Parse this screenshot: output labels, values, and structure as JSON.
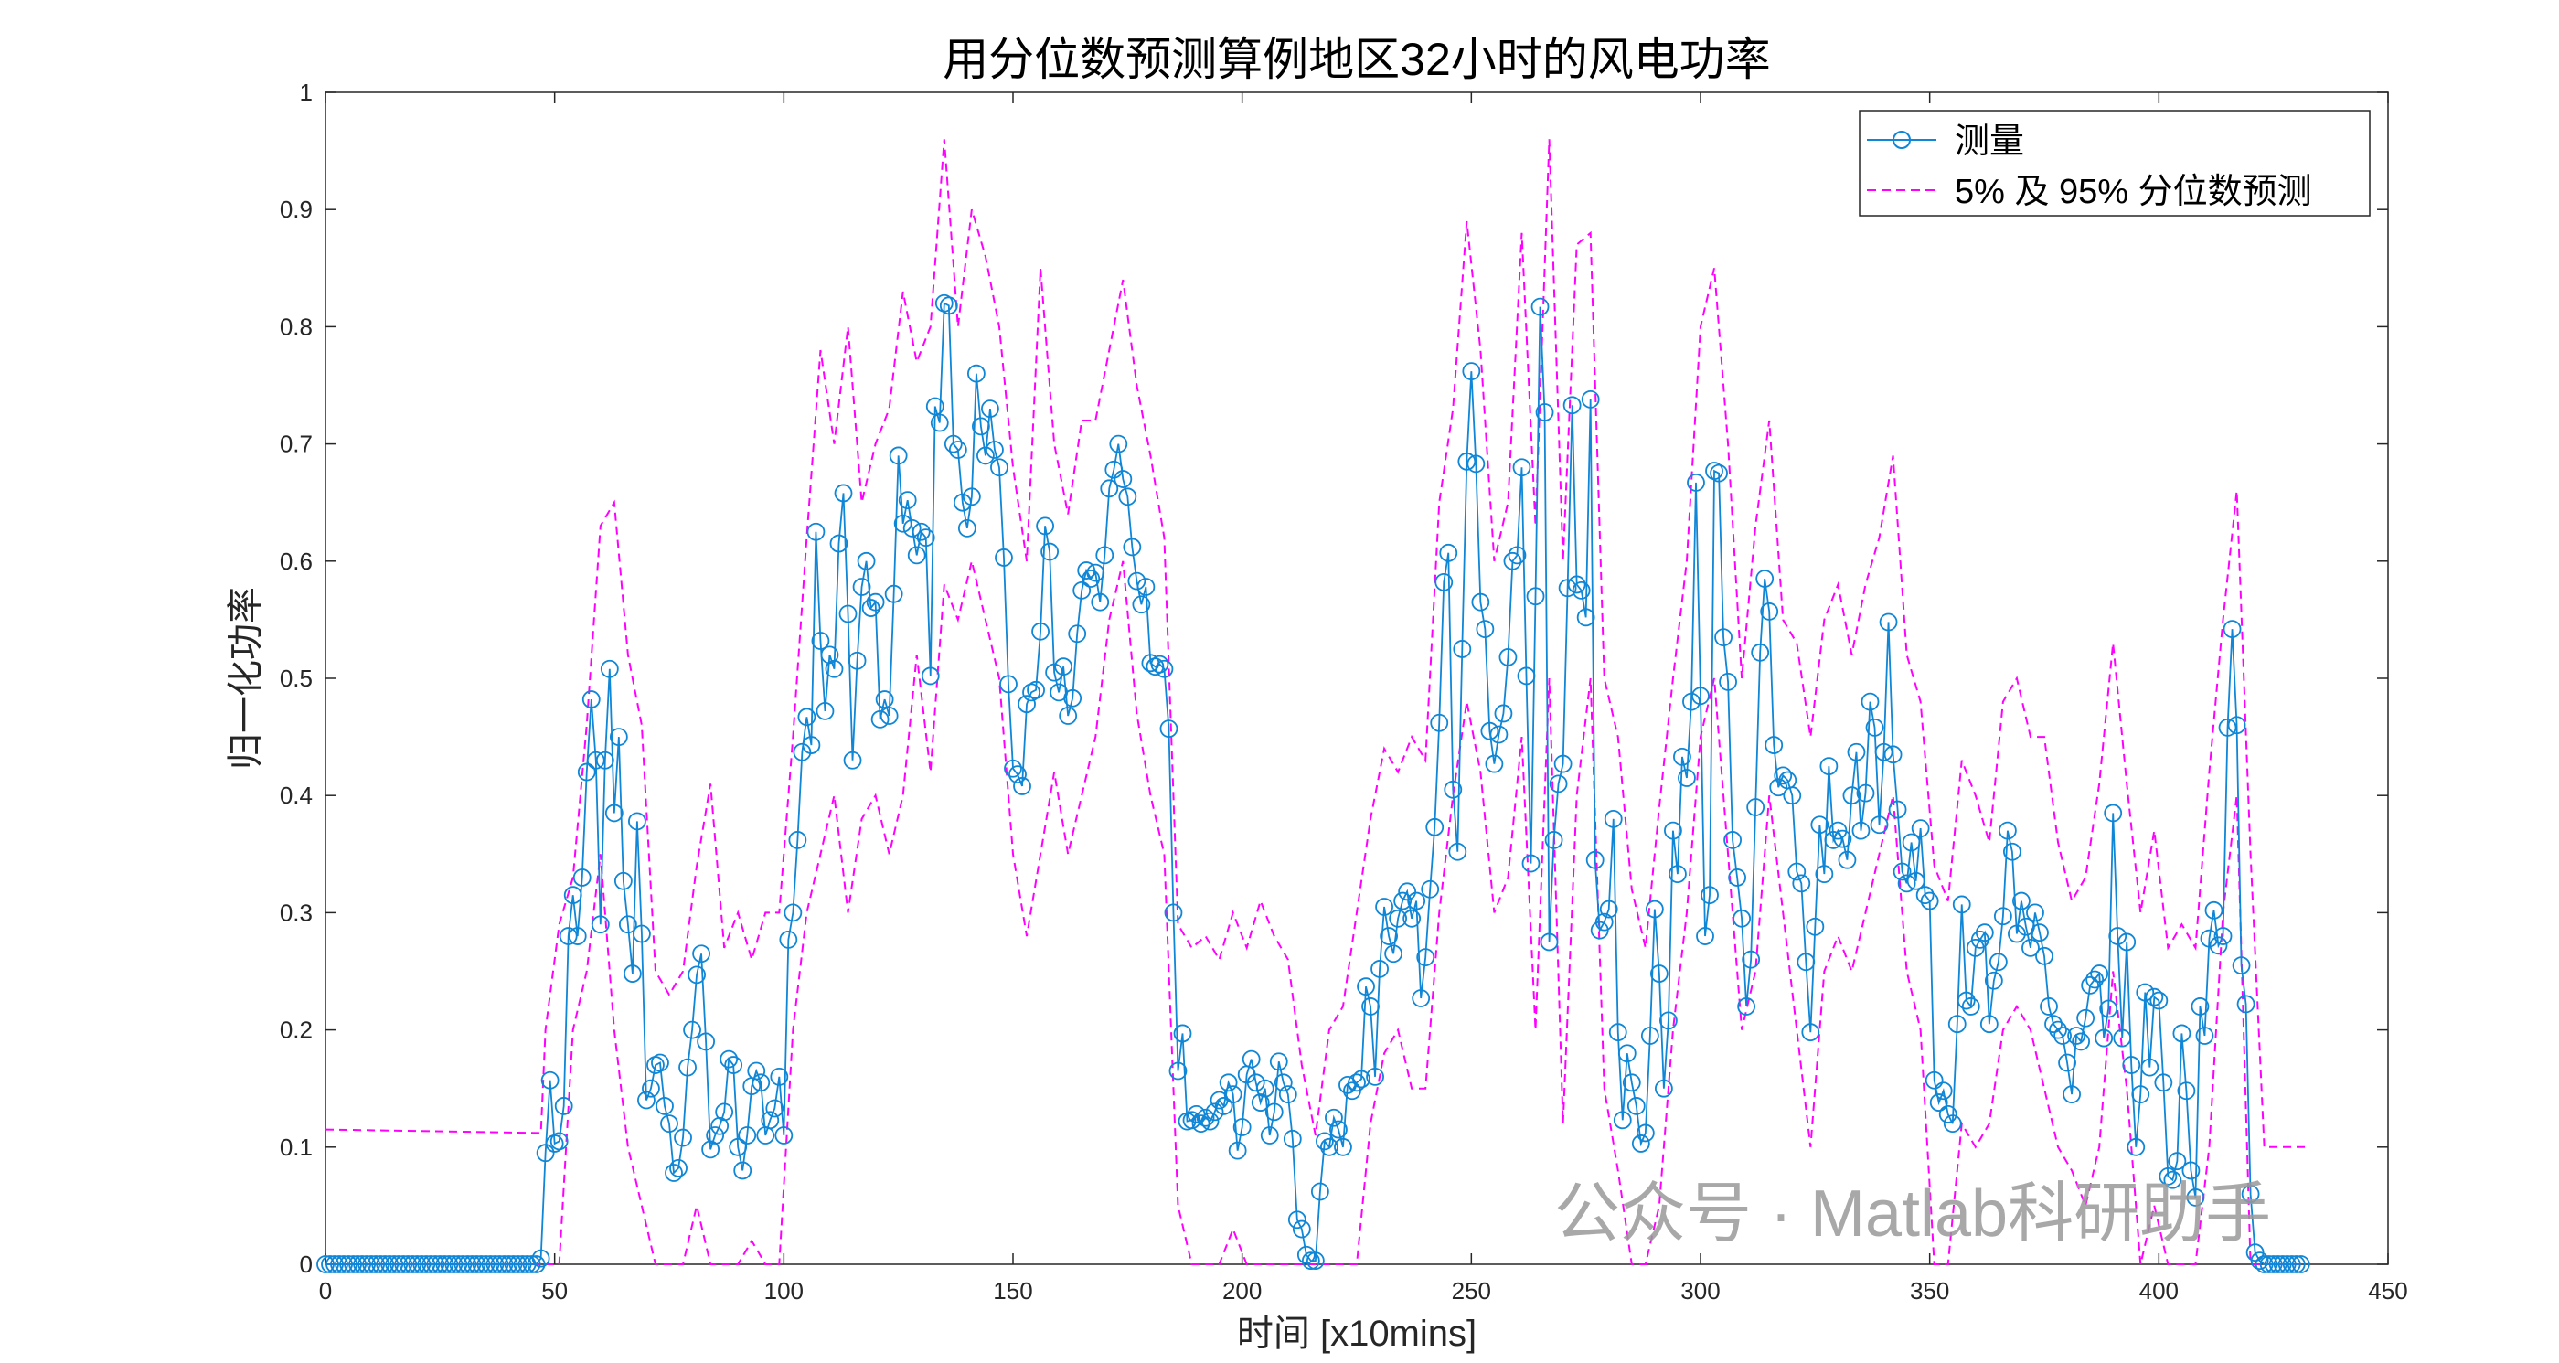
{
  "chart_data": {
    "type": "line",
    "title": "用分位数预测算例地区32小时的风电功率",
    "xlabel": "时间 [x10mins]",
    "ylabel": "归一化功率",
    "xlim": [
      0,
      450
    ],
    "ylim": [
      0,
      1
    ],
    "xticks": [
      "0",
      "50",
      "100",
      "150",
      "200",
      "250",
      "300",
      "350",
      "400",
      "450"
    ],
    "yticks": [
      "0",
      "0.1",
      "0.2",
      "0.3",
      "0.4",
      "0.5",
      "0.6",
      "0.7",
      "0.8",
      "0.9",
      "1"
    ],
    "grid": false,
    "legend_position": "top-right",
    "colors": {
      "measured": "#0F86D6",
      "quantile": "#FF00FF"
    },
    "series": [
      {
        "name": "测量",
        "style": "solid-circle",
        "x_start": 0,
        "step": 1,
        "values": [
          0,
          0,
          0,
          0,
          0,
          0,
          0,
          0,
          0,
          0,
          0,
          0,
          0,
          0,
          0,
          0,
          0,
          0,
          0,
          0,
          0,
          0,
          0,
          0,
          0,
          0,
          0,
          0,
          0,
          0,
          0,
          0,
          0,
          0,
          0,
          0,
          0,
          0,
          0,
          0,
          0,
          0,
          0,
          0,
          0,
          0,
          0,
          0.005,
          0.095,
          0.157,
          0.103,
          0.105,
          0.135,
          0.28,
          0.315,
          0.28,
          0.33,
          0.42,
          0.482,
          0.43,
          0.29,
          0.43,
          0.508,
          0.385,
          0.45,
          0.327,
          0.29,
          0.248,
          0.378,
          0.282,
          0.14,
          0.15,
          0.17,
          0.172,
          0.135,
          0.12,
          0.078,
          0.082,
          0.108,
          0.168,
          0.2,
          0.247,
          0.265,
          0.19,
          0.098,
          0.11,
          0.118,
          0.13,
          0.175,
          0.17,
          0.1,
          0.08,
          0.11,
          0.152,
          0.165,
          0.155,
          0.11,
          0.123,
          0.133,
          0.16,
          0.11,
          0.277,
          0.3,
          0.362,
          0.437,
          0.467,
          0.443,
          0.625,
          0.532,
          0.472,
          0.52,
          0.508,
          0.615,
          0.658,
          0.555,
          0.43,
          0.515,
          0.578,
          0.6,
          0.56,
          0.565,
          0.465,
          0.482,
          0.468,
          0.572,
          0.69,
          0.632,
          0.652,
          0.628,
          0.605,
          0.625,
          0.62,
          0.502,
          0.732,
          0.718,
          0.82,
          0.818,
          0.7,
          0.695,
          0.65,
          0.628,
          0.655,
          0.76,
          0.715,
          0.69,
          0.73,
          0.695,
          0.68,
          0.603,
          0.495,
          0.423,
          0.418,
          0.408,
          0.478,
          0.488,
          0.49,
          0.54,
          0.63,
          0.608,
          0.505,
          0.488,
          0.51,
          0.468,
          0.483,
          0.538,
          0.575,
          0.592,
          0.585,
          0.59,
          0.565,
          0.605,
          0.662,
          0.678,
          0.7,
          0.67,
          0.655,
          0.612,
          0.583,
          0.563,
          0.578,
          0.513,
          0.51,
          0.512,
          0.508,
          0.457,
          0.3,
          0.165,
          0.197,
          0.122,
          0.123,
          0.128,
          0.12,
          0.125,
          0.122,
          0.13,
          0.14,
          0.135,
          0.155,
          0.145,
          0.097,
          0.117,
          0.162,
          0.175,
          0.155,
          0.138,
          0.15,
          0.11,
          0.13,
          0.173,
          0.155,
          0.145,
          0.107,
          0.038,
          0.03,
          0.008,
          0.003,
          0.003,
          0.062,
          0.105,
          0.1,
          0.125,
          0.115,
          0.1,
          0.153,
          0.148,
          0.155,
          0.158,
          0.237,
          0.22,
          0.16,
          0.252,
          0.305,
          0.28,
          0.265,
          0.295,
          0.31,
          0.318,
          0.295,
          0.31,
          0.227,
          0.262,
          0.32,
          0.373,
          0.462,
          0.582,
          0.607,
          0.405,
          0.352,
          0.525,
          0.685,
          0.762,
          0.683,
          0.565,
          0.542,
          0.455,
          0.427,
          0.452,
          0.47,
          0.518,
          0.6,
          0.605,
          0.68,
          0.502,
          0.342,
          0.57,
          0.817,
          0.727,
          0.275,
          0.362,
          0.41,
          0.427,
          0.577,
          0.733,
          0.58,
          0.575,
          0.552,
          0.738,
          0.345,
          0.285,
          0.292,
          0.303,
          0.38,
          0.198,
          0.123,
          0.18,
          0.155,
          0.135,
          0.103,
          0.112,
          0.195,
          0.303,
          0.248,
          0.15,
          0.208,
          0.37,
          0.333,
          0.433,
          0.415,
          0.48,
          0.667,
          0.485,
          0.28,
          0.315,
          0.677,
          0.675,
          0.535,
          0.497,
          0.362,
          0.33,
          0.295,
          0.22,
          0.26,
          0.39,
          0.522,
          0.585,
          0.557,
          0.443,
          0.407,
          0.417,
          0.413,
          0.4,
          0.335,
          0.325,
          0.258,
          0.198,
          0.288,
          0.375,
          0.333,
          0.425,
          0.362,
          0.37,
          0.363,
          0.345,
          0.4,
          0.437,
          0.37,
          0.402,
          0.48,
          0.458,
          0.375,
          0.437,
          0.548,
          0.435,
          0.388,
          0.335,
          0.325,
          0.36,
          0.327,
          0.372,
          0.315,
          0.31,
          0.157,
          0.138,
          0.148,
          0.128,
          0.12,
          0.205,
          0.307,
          0.225,
          0.22,
          0.27,
          0.277,
          0.283,
          0.205,
          0.242,
          0.258,
          0.297,
          0.37,
          0.352,
          0.282,
          0.31,
          0.288,
          0.27,
          0.3,
          0.283,
          0.263,
          0.22,
          0.205,
          0.2,
          0.195,
          0.172,
          0.145,
          0.195,
          0.19,
          0.21,
          0.238,
          0.243,
          0.248,
          0.193,
          0.218,
          0.385,
          0.28,
          0.193,
          0.275,
          0.17,
          0.1,
          0.145,
          0.232,
          0.168,
          0.228,
          0.225,
          0.155,
          0.075,
          0.072,
          0.088,
          0.197,
          0.148,
          0.08,
          0.057,
          0.22,
          0.195,
          0.278,
          0.302,
          0.272,
          0.28,
          0.458,
          0.542,
          0.46,
          0.255,
          0.222,
          0.06,
          0.01,
          0.003,
          0,
          0,
          0,
          0,
          0,
          0,
          0,
          0,
          0
        ]
      },
      {
        "name": "5% 及 95% 分位数预测",
        "style": "dashed",
        "band": "upper",
        "prefix": [
          [
            0,
            0.115
          ],
          [
            47,
            0.112
          ],
          [
            48,
            0.2
          ]
        ],
        "x_start": 51,
        "step": 3,
        "values": [
          0.29,
          0.33,
          0.46,
          0.63,
          0.65,
          0.52,
          0.46,
          0.25,
          0.23,
          0.25,
          0.34,
          0.41,
          0.27,
          0.3,
          0.26,
          0.3,
          0.3,
          0.45,
          0.62,
          0.78,
          0.7,
          0.8,
          0.65,
          0.7,
          0.73,
          0.83,
          0.77,
          0.8,
          0.96,
          0.8,
          0.9,
          0.86,
          0.8,
          0.68,
          0.6,
          0.85,
          0.7,
          0.64,
          0.72,
          0.72,
          0.78,
          0.84,
          0.75,
          0.69,
          0.62,
          0.29,
          0.27,
          0.28,
          0.26,
          0.3,
          0.27,
          0.31,
          0.28,
          0.26,
          0.17,
          0.11,
          0.2,
          0.22,
          0.3,
          0.38,
          0.44,
          0.42,
          0.45,
          0.43,
          0.65,
          0.73,
          0.89,
          0.78,
          0.6,
          0.65,
          0.88,
          0.63,
          0.96,
          0.6,
          0.87,
          0.88,
          0.5,
          0.45,
          0.32,
          0.27,
          0.39,
          0.5,
          0.6,
          0.8,
          0.85,
          0.7,
          0.5,
          0.63,
          0.72,
          0.55,
          0.53,
          0.45,
          0.55,
          0.58,
          0.52,
          0.58,
          0.62,
          0.69,
          0.52,
          0.48,
          0.34,
          0.31,
          0.43,
          0.4,
          0.36,
          0.48,
          0.5,
          0.45,
          0.45,
          0.36,
          0.31,
          0.33,
          0.41,
          0.53,
          0.41,
          0.3,
          0.37,
          0.27,
          0.29,
          0.27,
          0.42,
          0.55,
          0.66,
          0.35,
          0.1,
          0.1,
          0.1,
          0.1
        ]
      },
      {
        "name": "5% 及 95% 分位数预测",
        "style": "dashed",
        "band": "lower",
        "prefix": [
          [
            0,
            0
          ]
        ],
        "x_start": 51,
        "step": 3,
        "values": [
          0,
          0.2,
          0.25,
          0.35,
          0.2,
          0.1,
          0.05,
          0,
          0,
          0,
          0.05,
          0,
          0,
          0,
          0.02,
          0,
          0,
          0.2,
          0.3,
          0.35,
          0.4,
          0.3,
          0.38,
          0.4,
          0.35,
          0.4,
          0.52,
          0.42,
          0.58,
          0.55,
          0.6,
          0.55,
          0.5,
          0.35,
          0.28,
          0.35,
          0.42,
          0.35,
          0.4,
          0.45,
          0.55,
          0.6,
          0.47,
          0.4,
          0.35,
          0.05,
          0,
          0,
          0,
          0.03,
          0,
          0,
          0,
          0,
          0,
          0,
          0,
          0,
          0,
          0.12,
          0.18,
          0.2,
          0.15,
          0.15,
          0.3,
          0.4,
          0.48,
          0.42,
          0.3,
          0.33,
          0.45,
          0.2,
          0.5,
          0.12,
          0.4,
          0.5,
          0.15,
          0.08,
          0,
          0,
          0.05,
          0.2,
          0.3,
          0.45,
          0.5,
          0.35,
          0.2,
          0.25,
          0.4,
          0.3,
          0.2,
          0.1,
          0.25,
          0.28,
          0.25,
          0.3,
          0.35,
          0.4,
          0.25,
          0.2,
          0,
          0,
          0.12,
          0.1,
          0.12,
          0.2,
          0.22,
          0.2,
          0.15,
          0.1,
          0.08,
          0.05,
          0.1,
          0.25,
          0.15,
          0,
          0.05,
          0,
          0,
          0,
          0.1,
          0.3,
          0.4,
          0,
          0,
          0,
          0,
          0
        ]
      }
    ]
  },
  "watermark": "公众号 · Matlab科研助手"
}
